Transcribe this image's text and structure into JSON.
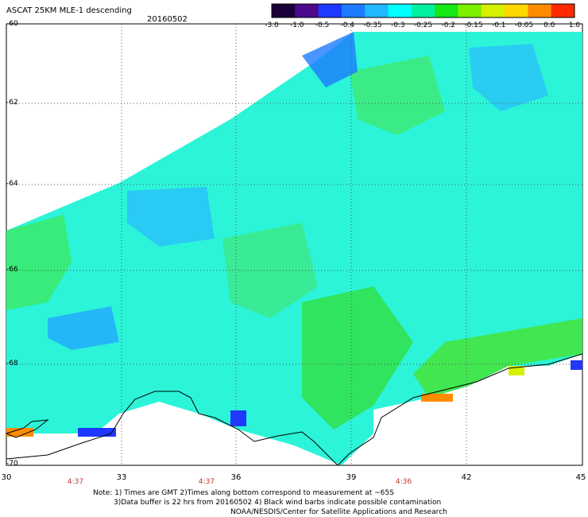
{
  "header": {
    "title": "ASCAT 25KM MLE-1 descending",
    "date": "20160502"
  },
  "colorbar": {
    "labels": [
      "-3.0",
      "-1.0",
      "-0.5",
      "-0.4",
      "-0.35",
      "-0.3",
      "-0.25",
      "-0.2",
      "-0.15",
      "-0.1",
      "-0.05",
      "0.0",
      "1.0"
    ],
    "colors": [
      "#1a0038",
      "#4b0a8c",
      "#1f38ff",
      "#1e7bff",
      "#22b8ff",
      "#00ffff",
      "#00f0a0",
      "#17e617",
      "#7cf000",
      "#d6f000",
      "#ffd700",
      "#ff8c00",
      "#ff2a00"
    ]
  },
  "axes": {
    "lon_labels": [
      "30",
      "33",
      "36",
      "39",
      "42",
      "45"
    ],
    "lat_labels": [
      "-60",
      "-62",
      "-64",
      "-66",
      "-68",
      "-70"
    ]
  },
  "times": [
    "4:37",
    "4:37",
    "4:36"
  ],
  "notes": {
    "line1": "Note: 1) Times are GMT 2)Times along bottom correspond to measurement at ~65S",
    "line2": "3)Data buffer is 22 hrs from 20160502 4) Black wind barbs indicate possible contamination",
    "line3": "NOAA/NESDIS/Center for Satellite Applications and Research"
  }
}
